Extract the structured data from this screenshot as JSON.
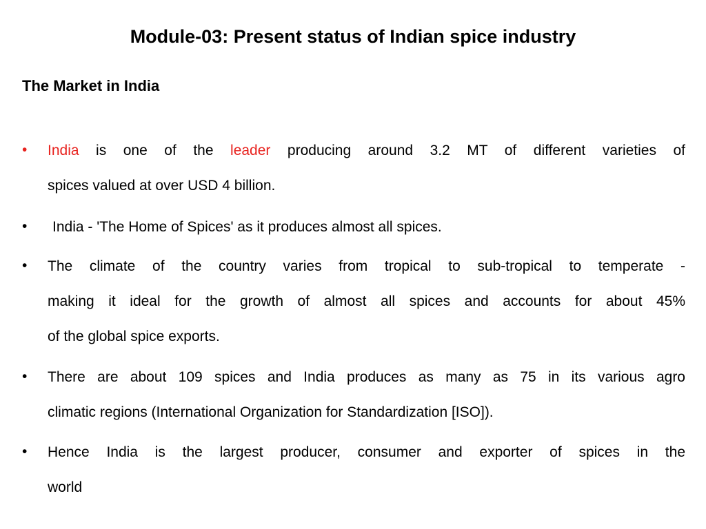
{
  "title": "Module-03: Present status of Indian spice industry",
  "subtitle": "The Market in India",
  "accent_color": "#e8231f",
  "bullet_glyph": "•",
  "bullets": [
    {
      "line1": {
        "s1": "India",
        "s2": " is one of the ",
        "s3": "leader",
        "s4": " producing around 3.2 MT of different varieties of"
      },
      "line2": "spices valued at over USD 4 billion."
    },
    {
      "line1": "India - 'The Home of Spices' as it produces almost all spices."
    },
    {
      "line1": "The climate of the country varies from tropical to sub-tropical to temperate -",
      "line2": "making it ideal for the growth of almost all spices and accounts for about 45%",
      "line3": "of the global spice exports."
    },
    {
      "line1": "There are about 109 spices and India produces as many as 75 in its various agro",
      "line2": "climatic regions (International Organization for Standardization [ISO])."
    },
    {
      "line1": "Hence India is the largest producer, consumer and exporter of spices in the",
      "line2": "world"
    }
  ]
}
